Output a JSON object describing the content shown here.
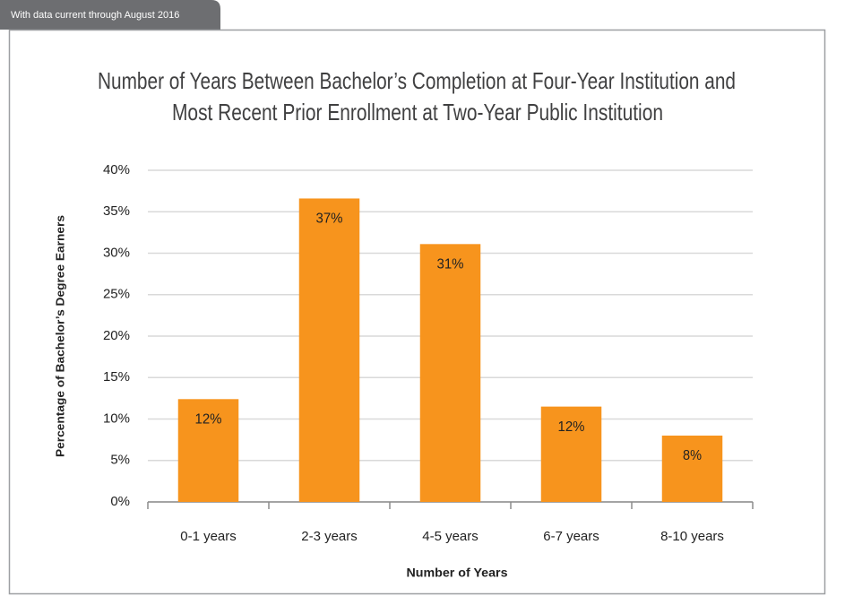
{
  "chart_data": {
    "type": "bar",
    "note": "With data current through August 2016",
    "title": [
      "Number of Years Between Bachelor’s Completion at Four-Year Institution and",
      "Most Recent Prior Enrollment at Two-Year Public Institution"
    ],
    "y_label": "Percentage of Bachelor’s Degree Earners",
    "x_label": "Number of Years",
    "categories": [
      "0-1 years",
      "2-3 years",
      "4-5 years",
      "6-7 years",
      "8-10 years"
    ],
    "values": [
      12.4,
      36.6,
      31.1,
      11.5,
      8.0
    ],
    "value_labels": [
      "12%",
      "37%",
      "31%",
      "12%",
      "8%"
    ],
    "color": "#f7941d",
    "ylim": [
      0,
      40
    ],
    "yticks": [
      {
        "value": 0,
        "label": "0%"
      },
      {
        "value": 5,
        "label": "5%"
      },
      {
        "value": 10,
        "label": "10%"
      },
      {
        "value": 15,
        "label": "15%"
      },
      {
        "value": 20,
        "label": "20%"
      },
      {
        "value": 25,
        "label": "25%"
      },
      {
        "value": 30,
        "label": "30%"
      },
      {
        "value": 35,
        "label": "35%"
      },
      {
        "value": 40,
        "label": "40%"
      }
    ],
    "grid": true
  }
}
